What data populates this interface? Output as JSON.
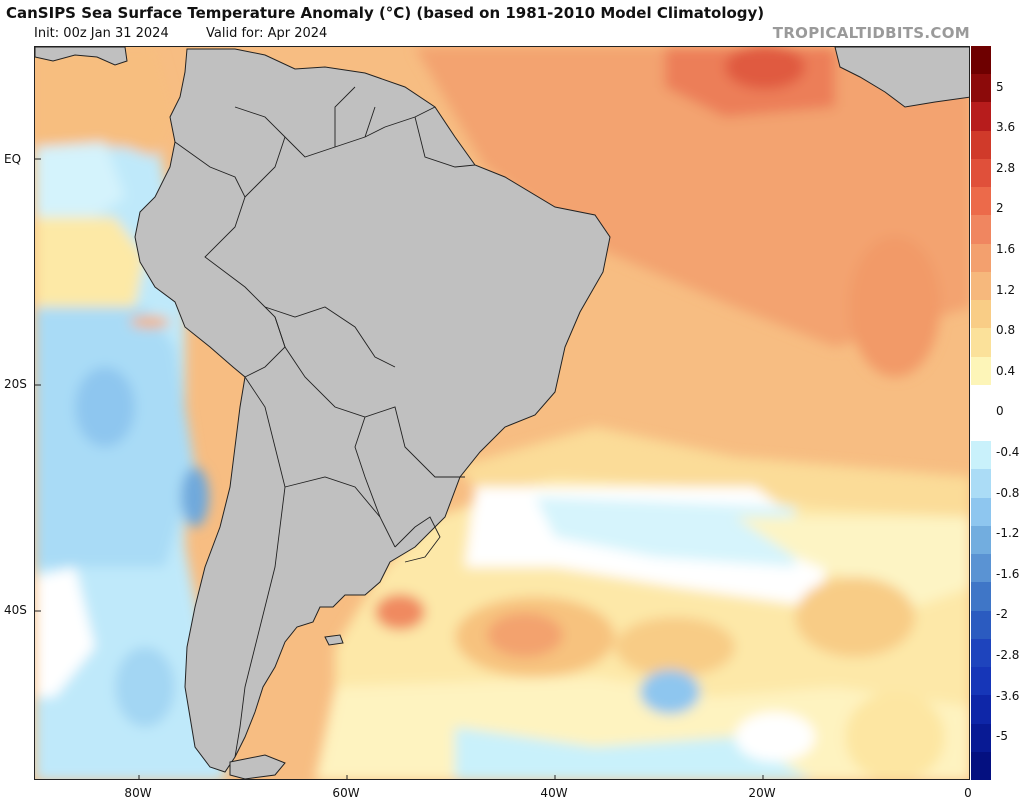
{
  "header": {
    "title": "CanSIPS Sea Surface Temperature Anomaly (°C) (based on 1981-2010 Model Climatology)",
    "init": "Init: 00z Jan 31 2024",
    "valid": "Valid for: Apr 2024",
    "brand": "TROPICALTIDBITS.COM"
  },
  "map": {
    "latitude_labels": [
      "EQ",
      "20S",
      "40S"
    ],
    "longitude_labels": [
      "80W",
      "60W",
      "40W",
      "20W",
      "0"
    ],
    "land_color": "#c0c0c0"
  },
  "colorbar": {
    "labels": [
      "5",
      "3.6",
      "2.8",
      "2",
      "1.6",
      "1.2",
      "0.8",
      "0.4",
      "0",
      "-0.4",
      "-0.8",
      "-1.2",
      "-1.6",
      "-2",
      "-2.8",
      "-3.6",
      "-5"
    ],
    "colors": [
      "#6e0000",
      "#8c0a0a",
      "#b71c1c",
      "#d03a2a",
      "#e0503a",
      "#ec6a4a",
      "#f08660",
      "#f3a06e",
      "#f6b87c",
      "#f9cd86",
      "#fbe19a",
      "#fdf5b8",
      "#ffffff",
      "#ffffff",
      "#c9f1fb",
      "#abdcf6",
      "#8ec6ef",
      "#72addf",
      "#5a93d3",
      "#3f76c7",
      "#2b5bc0",
      "#1e44bd",
      "#1636b8",
      "#0e26a8",
      "#081a94",
      "#041080"
    ]
  }
}
